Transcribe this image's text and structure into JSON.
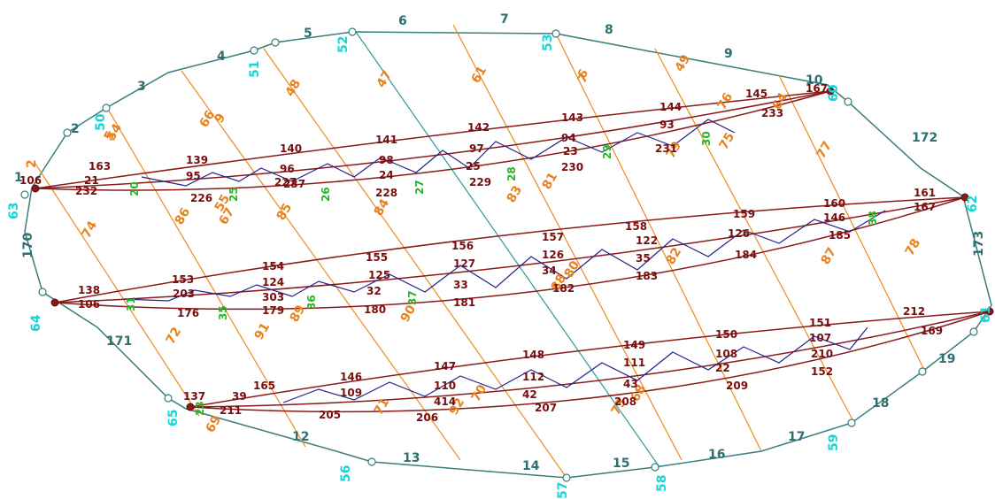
{
  "colors": {
    "boundary": "#3a7d7d",
    "node_label": "#14d4d4",
    "hatch_line": "#f08a1c",
    "chord": "#8a1a1a",
    "web": "#22228a",
    "support_label": "#22b822"
  },
  "boundary_labels": [
    "1",
    "2",
    "3",
    "4",
    "5",
    "6",
    "7",
    "8",
    "9",
    "10",
    "12",
    "13",
    "14",
    "15",
    "16",
    "17",
    "18",
    "19",
    "170",
    "171",
    "172",
    "173"
  ],
  "node_labels": [
    "50",
    "51",
    "52",
    "53",
    "56",
    "57",
    "58",
    "59",
    "60",
    "61",
    "62",
    "63",
    "64",
    "65"
  ],
  "hatch_labels": [
    "2",
    "5",
    "6",
    "7",
    "9",
    "47",
    "48",
    "49",
    "54",
    "55",
    "61",
    "64",
    "66",
    "67",
    "68",
    "69",
    "70",
    "71",
    "72",
    "73",
    "74",
    "75",
    "76",
    "77",
    "78",
    "79",
    "80",
    "81",
    "82",
    "83",
    "84",
    "85",
    "86",
    "87",
    "88",
    "89",
    "90",
    "91",
    "92"
  ],
  "member_labels_top": [
    "106",
    "163",
    "21",
    "232",
    "139",
    "95",
    "226",
    "140",
    "96",
    "227",
    "237",
    "141",
    "98",
    "24",
    "228",
    "142",
    "97",
    "25",
    "229",
    "143",
    "94",
    "23",
    "230",
    "144",
    "93",
    "231",
    "145",
    "233",
    "167"
  ],
  "member_labels_middle": [
    "138",
    "106",
    "153",
    "203",
    "176",
    "154",
    "124",
    "303",
    "179",
    "155",
    "125",
    "32",
    "180",
    "156",
    "127",
    "33",
    "181",
    "157",
    "126",
    "34",
    "182",
    "158",
    "122",
    "35",
    "183",
    "159",
    "126",
    "184",
    "160",
    "146",
    "185",
    "161",
    "167"
  ],
  "member_labels_bottom": [
    "137",
    "39",
    "165",
    "211",
    "146",
    "109",
    "205",
    "147",
    "110",
    "414",
    "206",
    "148",
    "112",
    "42",
    "207",
    "149",
    "111",
    "43",
    "208",
    "150",
    "108",
    "22",
    "209",
    "151",
    "107",
    "210",
    "152",
    "212",
    "169"
  ],
  "support_labels": [
    "20",
    "23",
    "25",
    "26",
    "27",
    "28",
    "29",
    "30",
    "31",
    "35",
    "36",
    "37",
    "38"
  ]
}
